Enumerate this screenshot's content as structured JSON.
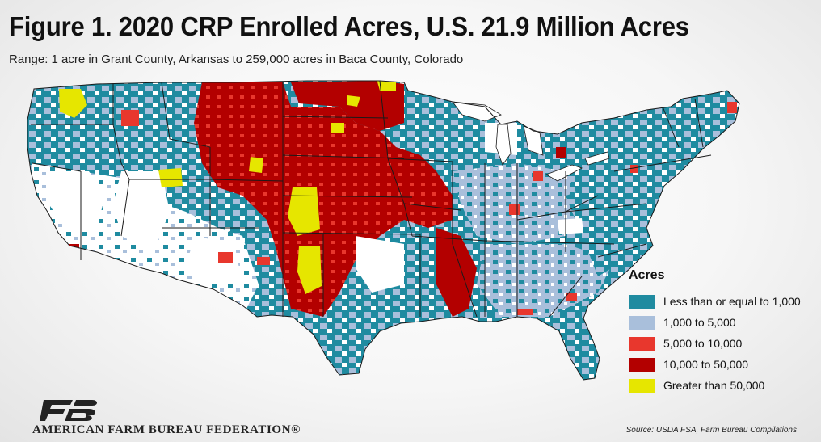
{
  "header": {
    "title": "Figure 1. 2020 CRP Enrolled Acres, U.S. 21.9 Million Acres",
    "subtitle": "Range: 1 acre in Grant County, Arkansas to 259,000 acres in Baca County, Colorado"
  },
  "legend": {
    "title": "Acres",
    "items": [
      {
        "label": "Less than or equal to 1,000",
        "color": "#1f8ba0"
      },
      {
        "label": "1,000 to 5,000",
        "color": "#a9bfdb"
      },
      {
        "label": "5,000 to 10,000",
        "color": "#e8372d"
      },
      {
        "label": "10,000 to 50,000",
        "color": "#b30000"
      },
      {
        "label": "Greater than 50,000",
        "color": "#e6e600"
      }
    ]
  },
  "footer": {
    "org_name": "AMERICAN FARM BUREAU FEDERATION®",
    "source": "Source: USDA FSA, Farm Bureau Compilations"
  },
  "colors": {
    "no_data": "#ffffff",
    "boundary": "#1a1a1a"
  }
}
